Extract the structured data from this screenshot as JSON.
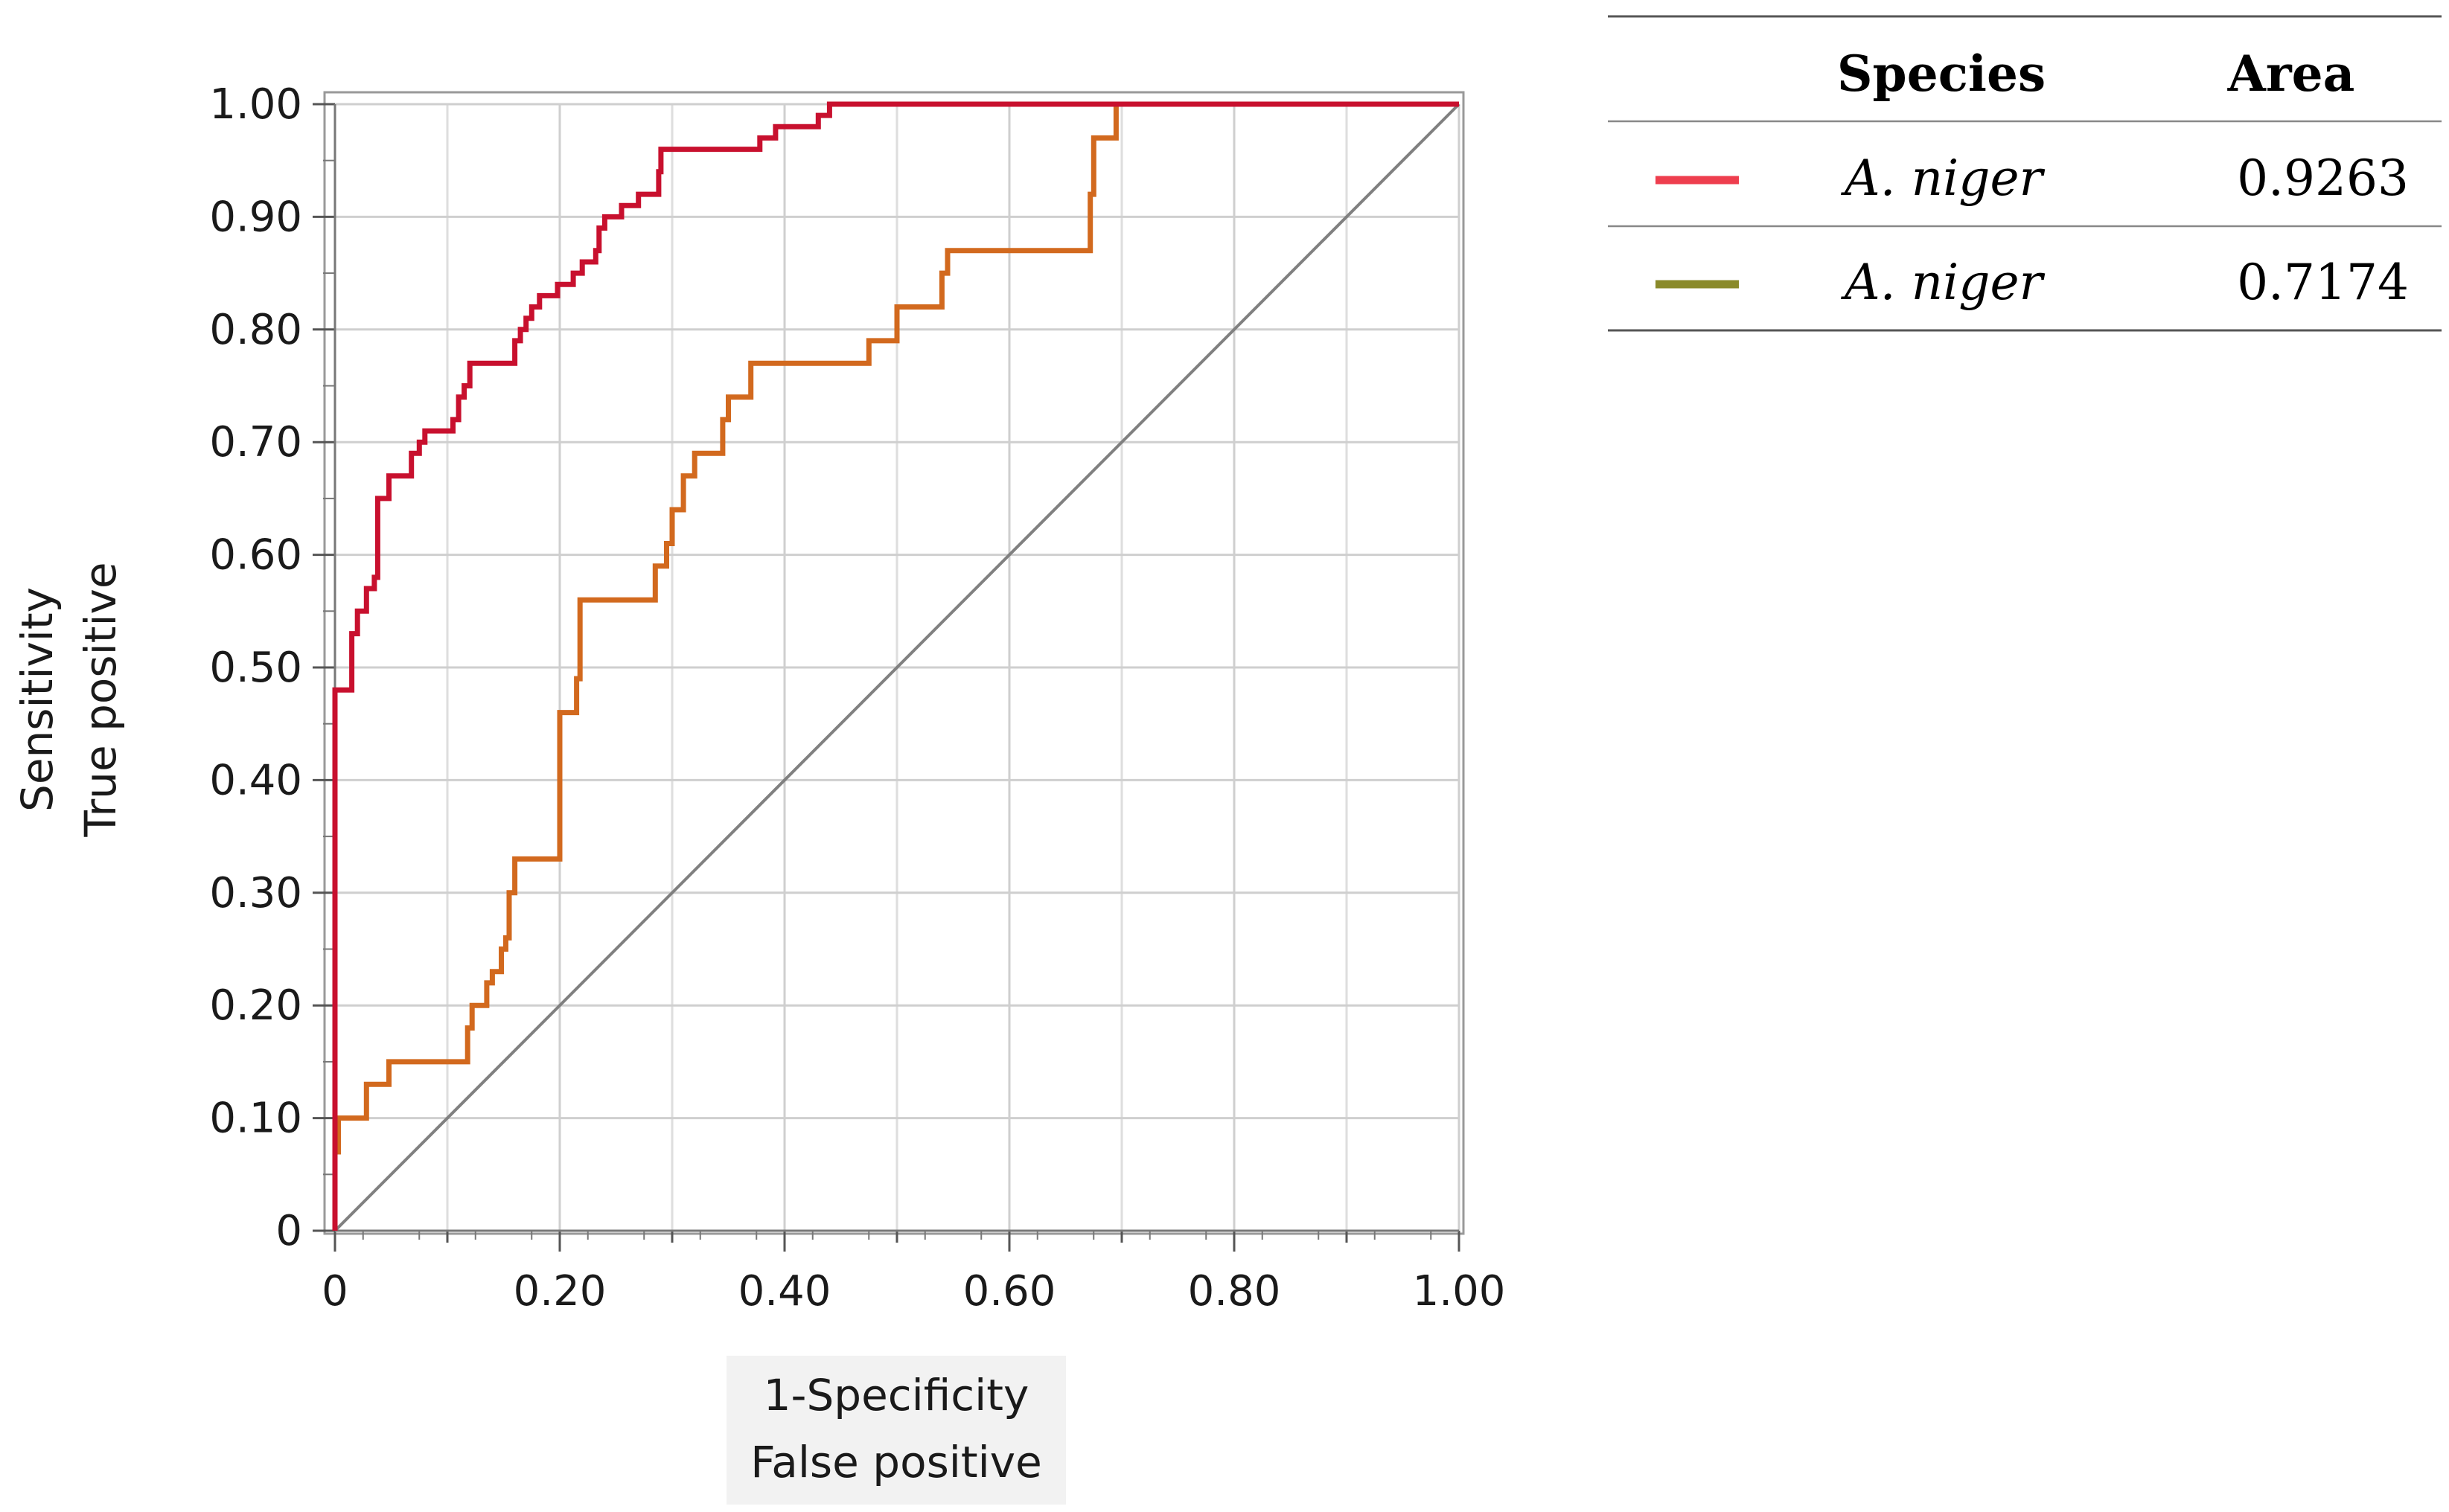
{
  "chart_data": {
    "type": "line",
    "xlabel": [
      "1-Specificity",
      "False positive"
    ],
    "ylabel": [
      "Sensitivity",
      "True positive"
    ],
    "xlim": [
      0,
      1
    ],
    "ylim": [
      0,
      1
    ],
    "x_ticks": [
      "0",
      "0.20",
      "0.40",
      "0.60",
      "0.80",
      "1.00"
    ],
    "y_ticks": [
      "0",
      "0.10",
      "0.20",
      "0.30",
      "0.40",
      "0.50",
      "0.60",
      "0.70",
      "0.80",
      "0.90",
      "1.00"
    ],
    "grid": true,
    "series": [
      {
        "color": "#c8102e",
        "points": [
          [
            0,
            0
          ],
          [
            0,
            0.48
          ],
          [
            0.015,
            0.48
          ],
          [
            0.015,
            0.53
          ],
          [
            0.02,
            0.53
          ],
          [
            0.02,
            0.55
          ],
          [
            0.028,
            0.55
          ],
          [
            0.028,
            0.57
          ],
          [
            0.035,
            0.57
          ],
          [
            0.035,
            0.58
          ],
          [
            0.038,
            0.58
          ],
          [
            0.038,
            0.65
          ],
          [
            0.048,
            0.65
          ],
          [
            0.048,
            0.67
          ],
          [
            0.068,
            0.67
          ],
          [
            0.068,
            0.69
          ],
          [
            0.075,
            0.69
          ],
          [
            0.075,
            0.7
          ],
          [
            0.08,
            0.7
          ],
          [
            0.08,
            0.71
          ],
          [
            0.105,
            0.71
          ],
          [
            0.105,
            0.72
          ],
          [
            0.11,
            0.72
          ],
          [
            0.11,
            0.74
          ],
          [
            0.115,
            0.74
          ],
          [
            0.115,
            0.75
          ],
          [
            0.12,
            0.75
          ],
          [
            0.12,
            0.77
          ],
          [
            0.16,
            0.77
          ],
          [
            0.16,
            0.79
          ],
          [
            0.165,
            0.79
          ],
          [
            0.165,
            0.8
          ],
          [
            0.17,
            0.8
          ],
          [
            0.17,
            0.81
          ],
          [
            0.175,
            0.81
          ],
          [
            0.175,
            0.82
          ],
          [
            0.182,
            0.82
          ],
          [
            0.182,
            0.83
          ],
          [
            0.198,
            0.83
          ],
          [
            0.198,
            0.84
          ],
          [
            0.212,
            0.84
          ],
          [
            0.212,
            0.85
          ],
          [
            0.22,
            0.85
          ],
          [
            0.22,
            0.86
          ],
          [
            0.232,
            0.86
          ],
          [
            0.232,
            0.87
          ],
          [
            0.235,
            0.87
          ],
          [
            0.235,
            0.89
          ],
          [
            0.24,
            0.89
          ],
          [
            0.24,
            0.9
          ],
          [
            0.255,
            0.9
          ],
          [
            0.255,
            0.91
          ],
          [
            0.27,
            0.91
          ],
          [
            0.27,
            0.92
          ],
          [
            0.288,
            0.92
          ],
          [
            0.288,
            0.94
          ],
          [
            0.29,
            0.94
          ],
          [
            0.29,
            0.96
          ],
          [
            0.378,
            0.96
          ],
          [
            0.378,
            0.97
          ],
          [
            0.392,
            0.97
          ],
          [
            0.392,
            0.98
          ],
          [
            0.43,
            0.98
          ],
          [
            0.43,
            0.99
          ],
          [
            0.44,
            0.99
          ],
          [
            0.44,
            1.0
          ],
          [
            1.0,
            1.0
          ]
        ]
      },
      {
        "color": "#d2691e",
        "points": [
          [
            0,
            0
          ],
          [
            0,
            0.07
          ],
          [
            0.003,
            0.07
          ],
          [
            0.003,
            0.1
          ],
          [
            0.028,
            0.1
          ],
          [
            0.028,
            0.13
          ],
          [
            0.048,
            0.13
          ],
          [
            0.048,
            0.15
          ],
          [
            0.118,
            0.15
          ],
          [
            0.118,
            0.18
          ],
          [
            0.122,
            0.18
          ],
          [
            0.122,
            0.2
          ],
          [
            0.135,
            0.2
          ],
          [
            0.135,
            0.22
          ],
          [
            0.14,
            0.22
          ],
          [
            0.14,
            0.23
          ],
          [
            0.148,
            0.23
          ],
          [
            0.148,
            0.25
          ],
          [
            0.152,
            0.25
          ],
          [
            0.152,
            0.26
          ],
          [
            0.155,
            0.26
          ],
          [
            0.155,
            0.3
          ],
          [
            0.16,
            0.3
          ],
          [
            0.16,
            0.33
          ],
          [
            0.2,
            0.33
          ],
          [
            0.2,
            0.46
          ],
          [
            0.215,
            0.46
          ],
          [
            0.215,
            0.49
          ],
          [
            0.218,
            0.49
          ],
          [
            0.218,
            0.56
          ],
          [
            0.285,
            0.56
          ],
          [
            0.285,
            0.59
          ],
          [
            0.295,
            0.59
          ],
          [
            0.295,
            0.61
          ],
          [
            0.3,
            0.61
          ],
          [
            0.3,
            0.64
          ],
          [
            0.31,
            0.64
          ],
          [
            0.31,
            0.67
          ],
          [
            0.32,
            0.67
          ],
          [
            0.32,
            0.69
          ],
          [
            0.345,
            0.69
          ],
          [
            0.345,
            0.72
          ],
          [
            0.35,
            0.72
          ],
          [
            0.35,
            0.74
          ],
          [
            0.37,
            0.74
          ],
          [
            0.37,
            0.77
          ],
          [
            0.475,
            0.77
          ],
          [
            0.475,
            0.79
          ],
          [
            0.5,
            0.79
          ],
          [
            0.5,
            0.82
          ],
          [
            0.54,
            0.82
          ],
          [
            0.54,
            0.85
          ],
          [
            0.545,
            0.85
          ],
          [
            0.545,
            0.87
          ],
          [
            0.672,
            0.87
          ],
          [
            0.672,
            0.92
          ],
          [
            0.675,
            0.92
          ],
          [
            0.675,
            0.97
          ],
          [
            0.695,
            0.97
          ],
          [
            0.695,
            1.0
          ],
          [
            1.0,
            1.0
          ]
        ]
      },
      {
        "color": "#808080",
        "points": [
          [
            0,
            0
          ],
          [
            1,
            1
          ]
        ]
      }
    ]
  },
  "legend_table": {
    "headers": {
      "species": "Species",
      "area": "Area"
    },
    "rows": [
      {
        "species": "A. niger",
        "area": "0.9263",
        "color": "#ee3e4e"
      },
      {
        "species": "A. niger",
        "area": "0.7174",
        "color": "#8a8a2a"
      }
    ]
  }
}
